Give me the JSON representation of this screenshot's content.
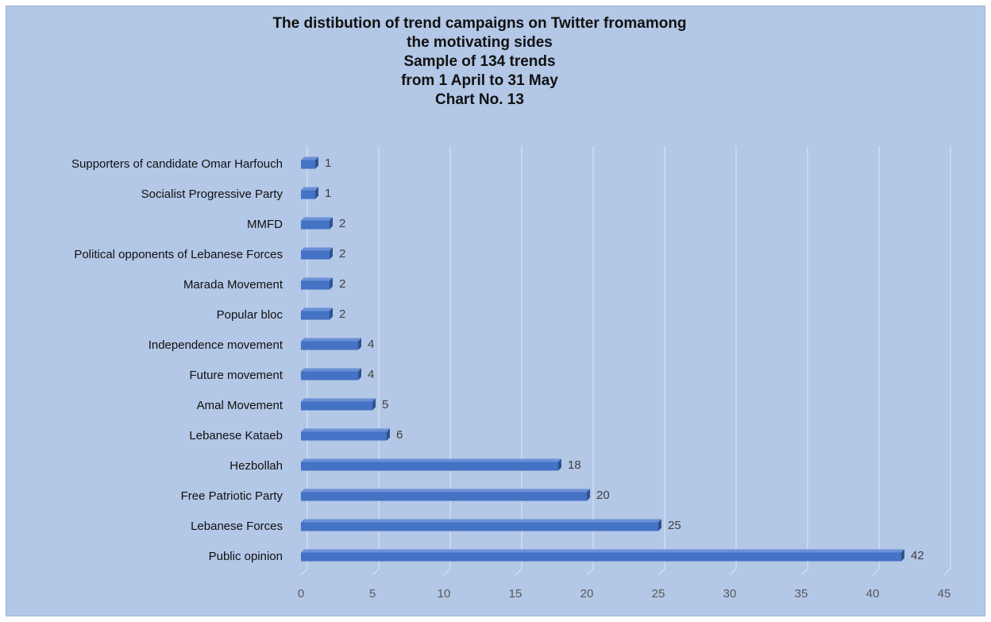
{
  "colors": {
    "background": "#b3c7e6",
    "bar_front": "#4472c4",
    "bar_top": "#6b90d6",
    "bar_side": "#2f528f",
    "grid": "#d9e2f1"
  },
  "chart_data": {
    "type": "bar",
    "orientation": "horizontal",
    "style": "3d",
    "title_lines": [
      "The distibution of trend campaigns on Twitter fromamong",
      "the motivating sides",
      "Sample of 134 trends",
      "from 1 April to 31 May",
      "Chart No. 13"
    ],
    "categories": [
      "Supporters of candidate Omar Harfouch",
      "Socialist Progressive Party",
      "MMFD",
      "Political opponents of Lebanese Forces",
      "Marada Movement",
      "Popular bloc",
      "Independence movement",
      "Future movement",
      "Amal Movement",
      "Lebanese Kataeb",
      "Hezbollah",
      "Free Patriotic Party",
      "Lebanese Forces",
      "Public opinion"
    ],
    "values": [
      1,
      1,
      2,
      2,
      2,
      2,
      4,
      4,
      5,
      6,
      18,
      20,
      25,
      42
    ],
    "data_labels": [
      "1",
      "1",
      "2",
      "2",
      "2",
      "2",
      "4",
      "4",
      "5",
      "6",
      "18",
      "20",
      "25",
      "42"
    ],
    "xlim": [
      0,
      45
    ],
    "xticks": [
      0,
      5,
      10,
      15,
      20,
      25,
      30,
      35,
      40,
      45
    ],
    "xtick_labels": [
      "0",
      "5",
      "10",
      "15",
      "20",
      "25",
      "30",
      "35",
      "40",
      "45"
    ],
    "grid": true,
    "legend": "none"
  }
}
